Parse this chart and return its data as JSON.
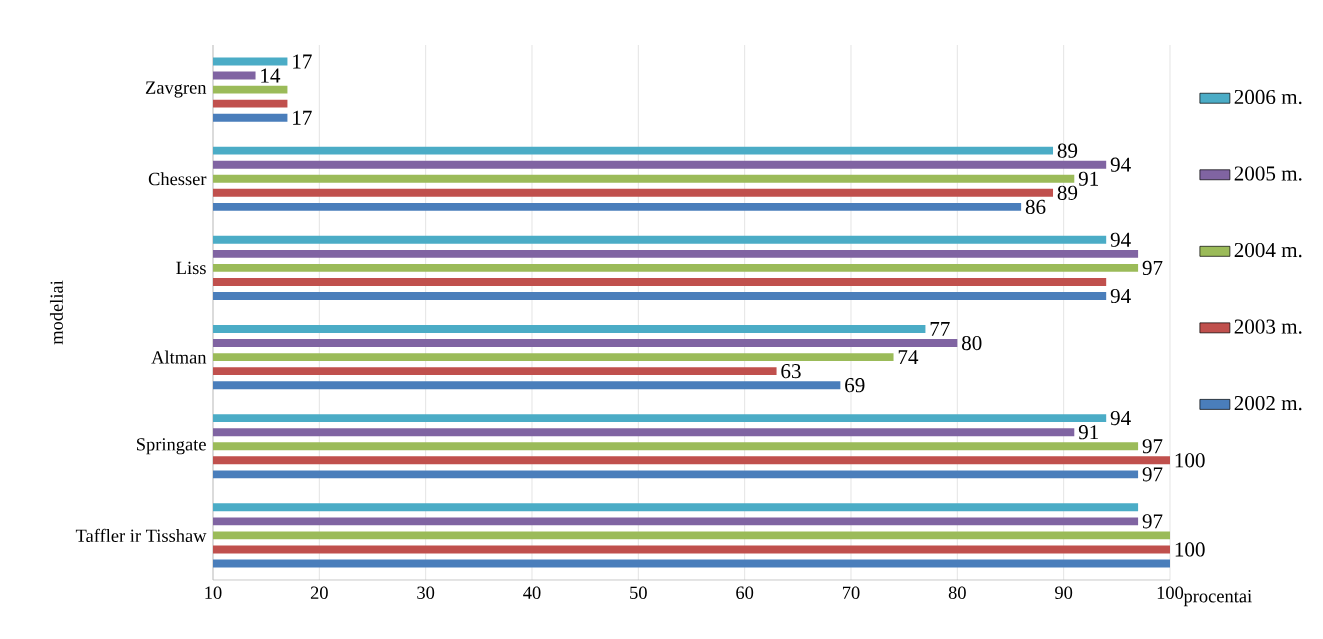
{
  "chart_data": {
    "type": "bar",
    "orientation": "horizontal",
    "xlabel": "procentai",
    "ylabel": "modeliai",
    "categories": [
      "Zavgren",
      "Chesser",
      "Liss",
      "Altman",
      "Springate",
      "Taffler ir Tisshaw"
    ],
    "series": [
      {
        "name": "2002 m.",
        "color": "#4a7ebb",
        "values": [
          17,
          86,
          94,
          69,
          97,
          100
        ],
        "value_labels": [
          "17",
          "86",
          "94",
          "69",
          "97",
          null
        ]
      },
      {
        "name": "2003 m.",
        "color": "#c0504d",
        "values": [
          17,
          89,
          94,
          63,
          100,
          100
        ],
        "value_labels": [
          null,
          "89",
          null,
          "63",
          "100",
          "100"
        ]
      },
      {
        "name": "2004 m.",
        "color": "#9bbb59",
        "values": [
          17,
          91,
          97,
          74,
          97,
          100
        ],
        "value_labels": [
          null,
          "91",
          "97",
          "74",
          "97",
          null
        ]
      },
      {
        "name": "2005 m.",
        "color": "#8064a2",
        "values": [
          14,
          94,
          97,
          80,
          91,
          97
        ],
        "value_labels": [
          "14",
          "94",
          null,
          "80",
          "91",
          "97"
        ]
      },
      {
        "name": "2006 m.",
        "color": "#4bacc6",
        "values": [
          17,
          89,
          94,
          77,
          94,
          97
        ],
        "value_labels": [
          "17",
          "89",
          "94",
          "77",
          "94",
          null
        ]
      }
    ],
    "xlim": [
      10,
      100
    ],
    "xticks": [
      10,
      20,
      30,
      40,
      50,
      60,
      70,
      80,
      90,
      100
    ],
    "grid": "x",
    "legend": "right"
  }
}
